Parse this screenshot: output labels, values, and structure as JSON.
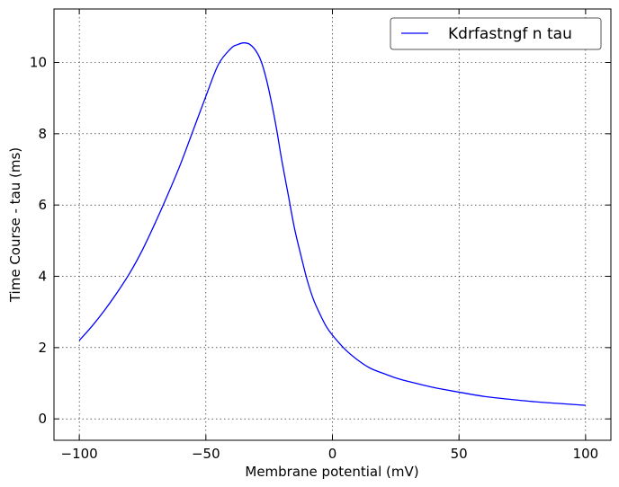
{
  "chart_data": {
    "type": "line",
    "title": "",
    "xlabel": "Membrane potential (mV)",
    "ylabel": "Time Course - tau (ms)",
    "xlim": [
      -110,
      110
    ],
    "ylim": [
      -0.6,
      11.5
    ],
    "xticks": [
      -100,
      -50,
      0,
      50,
      100
    ],
    "xtick_labels": [
      "−100",
      "−50",
      "0",
      "50",
      "100"
    ],
    "yticks": [
      0,
      2,
      4,
      6,
      8,
      10
    ],
    "ytick_labels": [
      "0",
      "2",
      "4",
      "6",
      "8",
      "10"
    ],
    "grid": true,
    "legend_position": "top-right",
    "series": [
      {
        "name": "Kdrfastngf n tau",
        "color": "#0000ff",
        "x": [
          -100,
          -95,
          -90,
          -85,
          -80,
          -75,
          -70,
          -65,
          -60,
          -55,
          -50,
          -45,
          -40,
          -37.5,
          -35,
          -32.5,
          -30,
          -28,
          -26,
          -24,
          -22,
          -20,
          -17.5,
          -15,
          -12.5,
          -10,
          -7.5,
          -5,
          -2.5,
          0,
          5,
          10,
          15,
          20,
          25,
          30,
          40,
          50,
          60,
          70,
          80,
          90,
          100
        ],
        "y": [
          2.2,
          2.6,
          3.05,
          3.55,
          4.1,
          4.75,
          5.5,
          6.3,
          7.15,
          8.1,
          9.05,
          9.95,
          10.4,
          10.5,
          10.55,
          10.5,
          10.3,
          10.0,
          9.5,
          8.85,
          8.1,
          7.25,
          6.3,
          5.35,
          4.6,
          3.9,
          3.35,
          2.95,
          2.6,
          2.35,
          1.95,
          1.65,
          1.42,
          1.28,
          1.15,
          1.05,
          0.88,
          0.75,
          0.63,
          0.55,
          0.48,
          0.43,
          0.38
        ]
      }
    ]
  }
}
